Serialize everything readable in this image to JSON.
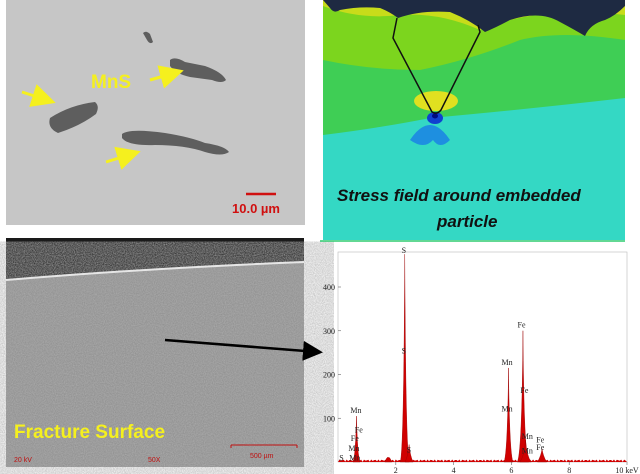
{
  "panels": {
    "micrograph": {
      "label": "MnS",
      "scale_bar": "10.0 µm"
    },
    "simulation": {
      "caption_line1": "Stress field around embedded",
      "caption_line2": "particle"
    },
    "fracture": {
      "label": "Fracture Surface",
      "voltage": "20 kV",
      "magnification": "50X",
      "scale_bar": "500 µm"
    }
  },
  "colors": {
    "label_yellow": "#f5f01e",
    "scale_red": "#d01010",
    "peak_red": "#d00000"
  },
  "chart_data": {
    "type": "line",
    "title": "",
    "xlabel": "keV",
    "ylabel": "",
    "xlim": [
      0,
      10
    ],
    "ylim": [
      0,
      480
    ],
    "x_ticks": [
      "2",
      "4",
      "6",
      "8",
      "10 keV"
    ],
    "y_ticks": [
      "100",
      "200",
      "300",
      "400"
    ],
    "peaks": [
      {
        "keV": 0.64,
        "counts": 105,
        "width": 0.12
      },
      {
        "keV": 1.74,
        "counts": 10,
        "width": 0.12
      },
      {
        "keV": 2.31,
        "counts": 475,
        "width": 0.16
      },
      {
        "keV": 2.46,
        "counts": 40,
        "width": 0.14
      },
      {
        "keV": 5.9,
        "counts": 215,
        "width": 0.16
      },
      {
        "keV": 6.4,
        "counts": 300,
        "width": 0.2
      },
      {
        "keV": 6.49,
        "counts": 50,
        "width": 0.2
      },
      {
        "keV": 7.06,
        "counts": 30,
        "width": 0.16
      }
    ],
    "peak_labels": [
      {
        "text": "S",
        "keV": 2.28,
        "counts": 478
      },
      {
        "text": "S",
        "keV": 2.28,
        "counts": 248
      },
      {
        "text": "S",
        "keV": 2.45,
        "counts": 22
      },
      {
        "text": "Mn",
        "keV": 0.62,
        "counts": 112
      },
      {
        "text": "Fe",
        "keV": 0.72,
        "counts": 68
      },
      {
        "text": "Fe",
        "keV": 0.58,
        "counts": 48
      },
      {
        "text": "Mn",
        "keV": 0.55,
        "counts": 25
      },
      {
        "text": "Mn",
        "keV": 0.58,
        "counts": 3
      },
      {
        "text": "S",
        "keV": 0.12,
        "counts": 3
      },
      {
        "text": "Mn",
        "keV": 5.85,
        "counts": 222
      },
      {
        "text": "Mn",
        "keV": 5.85,
        "counts": 115
      },
      {
        "text": "Fe",
        "keV": 6.35,
        "counts": 308
      },
      {
        "text": "Fe",
        "keV": 6.45,
        "counts": 158
      },
      {
        "text": "Mn",
        "keV": 6.55,
        "counts": 53
      },
      {
        "text": "Mn",
        "keV": 6.55,
        "counts": 20
      },
      {
        "text": "Fe",
        "keV": 7.0,
        "counts": 45
      },
      {
        "text": "Fe",
        "keV": 7.0,
        "counts": 27
      }
    ]
  }
}
